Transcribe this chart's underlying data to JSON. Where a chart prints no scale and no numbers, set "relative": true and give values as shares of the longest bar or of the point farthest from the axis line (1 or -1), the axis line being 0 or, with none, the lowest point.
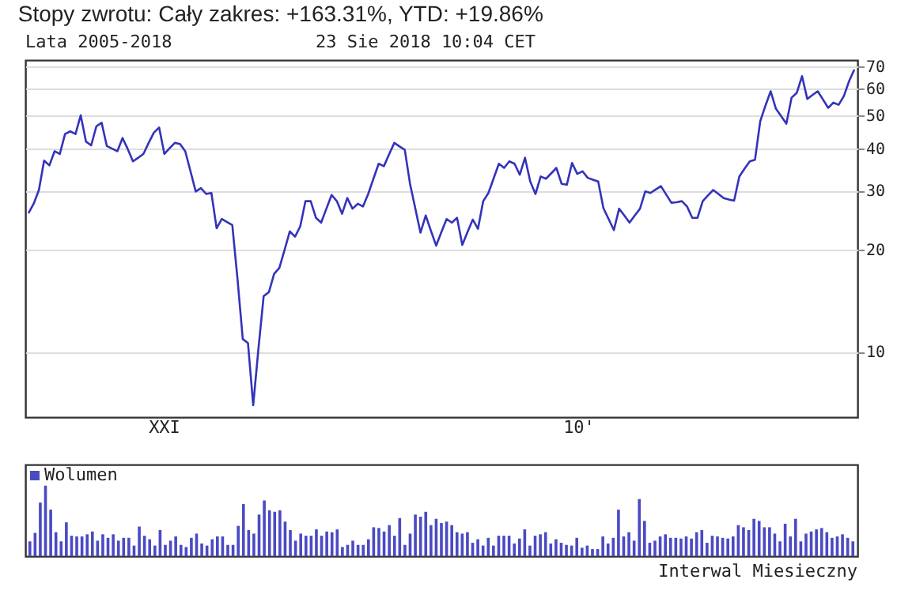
{
  "chart_data": [
    {
      "type": "line",
      "title": "Stopy zwrotu: Cały zakres: +163.31%, YTD: +19.86%",
      "annotations": [
        "Lata 2005-2018",
        "23 Sie 2018 10:04 CET",
        "XXI",
        "10'"
      ],
      "categories": [
        null,
        null,
        null,
        null,
        null,
        null,
        null,
        null,
        null,
        null,
        null,
        null,
        null,
        null,
        null,
        null,
        null,
        null,
        null,
        null,
        null,
        null,
        null,
        null,
        null,
        null,
        null,
        null,
        null,
        null,
        null,
        null,
        null,
        null,
        null,
        null,
        null,
        null,
        null,
        null,
        null,
        null,
        null,
        null,
        null,
        null,
        null,
        null,
        null,
        null,
        null,
        null,
        null,
        null,
        null,
        null,
        null,
        null,
        null,
        null,
        null,
        null,
        null,
        null,
        null,
        null,
        null,
        null,
        null,
        null,
        null,
        null,
        null,
        null,
        null,
        null,
        null,
        null,
        null,
        null,
        null,
        null,
        null,
        null,
        null,
        null,
        null,
        null,
        null,
        null,
        null,
        null,
        null,
        null,
        null,
        null,
        null,
        null,
        null,
        null,
        null,
        null,
        null,
        null,
        null,
        null,
        null,
        null,
        null,
        null,
        null,
        null,
        null,
        null,
        null,
        null,
        null,
        null,
        null,
        null,
        null,
        null,
        null,
        null,
        null,
        null,
        null,
        null,
        null,
        null,
        null,
        null,
        null,
        null,
        null,
        null,
        null,
        null,
        null,
        null,
        null,
        null,
        null,
        null,
        null,
        null,
        null,
        null,
        null,
        null,
        null,
        null,
        null,
        null,
        null,
        null,
        null,
        null,
        null
      ],
      "ylim": [
        6.4,
        73
      ],
      "yticks": [
        10,
        20,
        30,
        40,
        50,
        60,
        70
      ],
      "log": true,
      "grid": "y",
      "series": [
        {
          "color": "#3333bb",
          "values": [
            25.7,
            27.4,
            30.1,
            36.8,
            35.6,
            39.2,
            38.5,
            44.1,
            44.9,
            44.1,
            50.1,
            41.9,
            40.8,
            46.5,
            47.6,
            40.6,
            39.9,
            39.2,
            42.9,
            39.8,
            36.6,
            37.5,
            38.5,
            41.5,
            44.5,
            46.1,
            38.5,
            40.0,
            41.5,
            41.2,
            39.2,
            34.2,
            29.8,
            30.5,
            29.3,
            29.5,
            23.2,
            24.7,
            24.2,
            23.7,
            16.4,
            10.9,
            10.6,
            6.94,
            10.2,
            14.6,
            15.0,
            17.0,
            17.7,
            20.0,
            22.7,
            21.9,
            23.5,
            27.9,
            27.9,
            24.9,
            24.1,
            26.5,
            29.1,
            27.9,
            25.6,
            28.5,
            26.5,
            27.4,
            26.9,
            29.3,
            32.5,
            36.0,
            35.4,
            38.4,
            41.5,
            40.5,
            39.6,
            31.4,
            26.6,
            22.5,
            25.3,
            22.8,
            20.6,
            22.6,
            24.7,
            24.1,
            24.9,
            20.7,
            22.6,
            24.6,
            23.1,
            27.9,
            29.5,
            32.6,
            36.0,
            35.0,
            36.6,
            36.0,
            33.4,
            37.5,
            31.9,
            29.3,
            33.0,
            32.5,
            33.7,
            35.0,
            31.4,
            31.2,
            36.2,
            33.6,
            34.2,
            32.7,
            32.3,
            31.9,
            26.6,
            24.7,
            22.9,
            26.5,
            25.3,
            24.1,
            25.3,
            26.5,
            29.8,
            29.5,
            30.2,
            30.9,
            29.2,
            27.6,
            27.7,
            27.9,
            26.9,
            24.9,
            24.9,
            27.9,
            29.0,
            30.1,
            29.3,
            28.5,
            28.2,
            28.0,
            33.0,
            34.8,
            36.6,
            37.0,
            48.1,
            53.5,
            59.0,
            52.4,
            49.8,
            47.3,
            56.5,
            58.4,
            65.4,
            56.0,
            57.5,
            59.0,
            55.8,
            52.7,
            54.6,
            53.8,
            57.1,
            63.2,
            68.4
          ]
        }
      ]
    },
    {
      "type": "bar",
      "relative": true,
      "legend": "top left",
      "annotations": [
        "Interwal Miesieczny"
      ],
      "categories": [
        null,
        null,
        null,
        null,
        null,
        null,
        null,
        null,
        null,
        null,
        null,
        null,
        null,
        null,
        null,
        null,
        null,
        null,
        null,
        null,
        null,
        null,
        null,
        null,
        null,
        null,
        null,
        null,
        null,
        null,
        null,
        null,
        null,
        null,
        null,
        null,
        null,
        null,
        null,
        null,
        null,
        null,
        null,
        null,
        null,
        null,
        null,
        null,
        null,
        null,
        null,
        null,
        null,
        null,
        null,
        null,
        null,
        null,
        null,
        null,
        null,
        null,
        null,
        null,
        null,
        null,
        null,
        null,
        null,
        null,
        null,
        null,
        null,
        null,
        null,
        null,
        null,
        null,
        null,
        null,
        null,
        null,
        null,
        null,
        null,
        null,
        null,
        null,
        null,
        null,
        null,
        null,
        null,
        null,
        null,
        null,
        null,
        null,
        null,
        null,
        null,
        null,
        null,
        null,
        null,
        null,
        null,
        null,
        null,
        null,
        null,
        null,
        null,
        null,
        null,
        null,
        null,
        null,
        null,
        null,
        null,
        null,
        null,
        null,
        null,
        null,
        null,
        null,
        null,
        null,
        null,
        null,
        null,
        null,
        null,
        null,
        null,
        null,
        null,
        null,
        null,
        null,
        null,
        null,
        null,
        null,
        null,
        null,
        null,
        null,
        null,
        null,
        null,
        null,
        null,
        null,
        null,
        null,
        null
      ],
      "series": [
        {
          "name": "Wolumen",
          "color": "#4a4ac4",
          "values": [
            0.21,
            0.33,
            0.76,
            1,
            0.66,
            0.34,
            0.21,
            0.48,
            0.29,
            0.28,
            0.28,
            0.31,
            0.35,
            0.22,
            0.31,
            0.26,
            0.31,
            0.22,
            0.26,
            0.26,
            0.15,
            0.42,
            0.29,
            0.24,
            0.15,
            0.37,
            0.16,
            0.22,
            0.28,
            0.16,
            0.13,
            0.26,
            0.32,
            0.18,
            0.15,
            0.24,
            0.28,
            0.28,
            0.16,
            0.16,
            0.43,
            0.74,
            0.37,
            0.32,
            0.59,
            0.79,
            0.65,
            0.63,
            0.65,
            0.49,
            0.37,
            0.22,
            0.32,
            0.29,
            0.29,
            0.38,
            0.29,
            0.35,
            0.34,
            0.38,
            0.13,
            0.16,
            0.22,
            0.16,
            0.16,
            0.24,
            0.41,
            0.4,
            0.35,
            0.44,
            0.29,
            0.54,
            0.16,
            0.32,
            0.59,
            0.56,
            0.63,
            0.44,
            0.53,
            0.47,
            0.49,
            0.44,
            0.34,
            0.32,
            0.34,
            0.19,
            0.24,
            0.15,
            0.26,
            0.15,
            0.29,
            0.29,
            0.29,
            0.18,
            0.25,
            0.38,
            0.15,
            0.29,
            0.31,
            0.34,
            0.18,
            0.24,
            0.19,
            0.16,
            0.15,
            0.26,
            0.12,
            0.15,
            0.1,
            0.1,
            0.28,
            0.18,
            0.26,
            0.66,
            0.28,
            0.34,
            0.22,
            0.81,
            0.5,
            0.19,
            0.22,
            0.28,
            0.31,
            0.26,
            0.26,
            0.25,
            0.28,
            0.25,
            0.34,
            0.37,
            0.19,
            0.29,
            0.28,
            0.26,
            0.25,
            0.28,
            0.44,
            0.41,
            0.37,
            0.53,
            0.5,
            0.41,
            0.41,
            0.32,
            0.21,
            0.46,
            0.28,
            0.53,
            0.21,
            0.32,
            0.35,
            0.38,
            0.4,
            0.34,
            0.26,
            0.28,
            0.31,
            0.26,
            0.21
          ]
        }
      ]
    }
  ]
}
